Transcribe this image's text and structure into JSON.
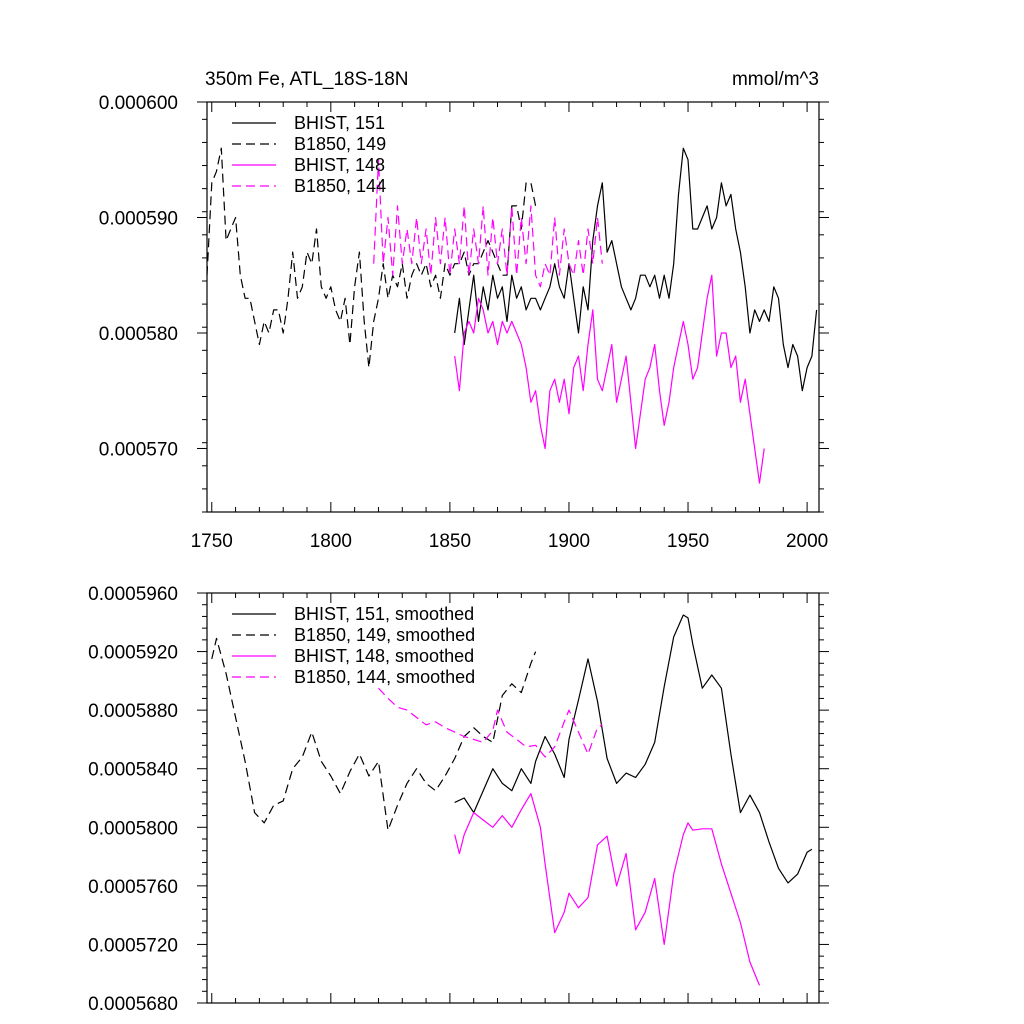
{
  "title_left": "350m Fe, ATL_18S-18N",
  "title_right": "mmol/m^3",
  "colors": {
    "black": "#000000",
    "magenta": "#ff00ff"
  },
  "chart_data": [
    {
      "type": "line",
      "title": "350m Fe, ATL_18S-18N",
      "units": "mmol/m^3",
      "xlim": [
        1748,
        2005
      ],
      "ylim": [
        0.0005645,
        0.0006
      ],
      "x_ticks": [
        1750,
        1800,
        1850,
        1900,
        1950,
        2000
      ],
      "x_tick_labels": [
        "1750",
        "1800",
        "1850",
        "1900",
        "1950",
        "2000"
      ],
      "y_ticks": [
        0.00057,
        0.00058,
        0.00059,
        0.0006
      ],
      "y_tick_labels": [
        "0.000570",
        "0.000580",
        "0.000590",
        "0.000600"
      ],
      "grid": false,
      "legend_position": "top-left",
      "series": [
        {
          "name": "BHIST, 151",
          "color": "#000000",
          "dash": "solid",
          "x": [
            1852,
            1854,
            1856,
            1858,
            1860,
            1862,
            1864,
            1866,
            1868,
            1870,
            1872,
            1874,
            1876,
            1878,
            1880,
            1882,
            1884,
            1886,
            1888,
            1890,
            1892,
            1894,
            1896,
            1898,
            1900,
            1902,
            1904,
            1906,
            1908,
            1910,
            1912,
            1914,
            1916,
            1918,
            1920,
            1922,
            1924,
            1926,
            1928,
            1930,
            1932,
            1934,
            1936,
            1938,
            1940,
            1942,
            1944,
            1946,
            1948,
            1950,
            1952,
            1954,
            1956,
            1958,
            1960,
            1962,
            1964,
            1966,
            1968,
            1970,
            1972,
            1974,
            1976,
            1978,
            1980,
            1982,
            1984,
            1986,
            1988,
            1990,
            1992,
            1994,
            1996,
            1998,
            2000,
            2002,
            2004
          ],
          "y": [
            0.00058,
            0.000583,
            0.000579,
            0.000582,
            0.000585,
            0.000581,
            0.000584,
            0.000582,
            0.000585,
            0.000583,
            0.000584,
            0.000581,
            0.000585,
            0.000583,
            0.000584,
            0.000582,
            0.000583,
            0.000583,
            0.000582,
            0.000583,
            0.000584,
            0.000586,
            0.000584,
            0.000583,
            0.000586,
            0.000583,
            0.00058,
            0.000584,
            0.000582,
            0.000588,
            0.000591,
            0.000593,
            0.000587,
            0.000588,
            0.000586,
            0.000584,
            0.000583,
            0.000582,
            0.000583,
            0.000585,
            0.000585,
            0.000584,
            0.000585,
            0.000583,
            0.000585,
            0.000583,
            0.000586,
            0.000592,
            0.000596,
            0.000595,
            0.000589,
            0.000589,
            0.00059,
            0.000591,
            0.000589,
            0.00059,
            0.000593,
            0.000591,
            0.000592,
            0.000589,
            0.000587,
            0.000584,
            0.00058,
            0.000582,
            0.000581,
            0.000582,
            0.000581,
            0.000584,
            0.000583,
            0.000579,
            0.000577,
            0.000579,
            0.000578,
            0.000575,
            0.000577,
            0.000578,
            0.000582
          ]
        },
        {
          "name": "B1850, 149",
          "color": "#000000",
          "dash": "dashed",
          "x": [
            1748,
            1750,
            1752,
            1754,
            1756,
            1758,
            1760,
            1762,
            1764,
            1766,
            1768,
            1770,
            1772,
            1774,
            1776,
            1778,
            1780,
            1782,
            1784,
            1786,
            1788,
            1790,
            1792,
            1794,
            1796,
            1798,
            1800,
            1802,
            1804,
            1806,
            1808,
            1810,
            1812,
            1814,
            1816,
            1818,
            1820,
            1822,
            1824,
            1826,
            1828,
            1830,
            1832,
            1834,
            1836,
            1838,
            1840,
            1842,
            1844,
            1846,
            1848,
            1850,
            1852,
            1854,
            1856,
            1858,
            1860,
            1862,
            1864,
            1866,
            1868,
            1870,
            1872,
            1874,
            1876,
            1878,
            1880,
            1882,
            1884,
            1886
          ],
          "y": [
            0.000585,
            0.000593,
            0.000594,
            0.000596,
            0.000588,
            0.000589,
            0.00059,
            0.000585,
            0.000583,
            0.000583,
            0.000581,
            0.000579,
            0.000581,
            0.00058,
            0.000582,
            0.000582,
            0.00058,
            0.000583,
            0.000587,
            0.000583,
            0.000584,
            0.000587,
            0.000586,
            0.000589,
            0.000584,
            0.000583,
            0.000584,
            0.000582,
            0.000581,
            0.000583,
            0.000579,
            0.000584,
            0.000587,
            0.000581,
            0.000577,
            0.000581,
            0.000583,
            0.000586,
            0.000583,
            0.000585,
            0.000584,
            0.000586,
            0.000583,
            0.000585,
            0.000586,
            0.000585,
            0.000586,
            0.000584,
            0.000585,
            0.000583,
            0.000586,
            0.000585,
            0.000586,
            0.000586,
            0.000587,
            0.000585,
            0.000586,
            0.000586,
            0.000587,
            0.000588,
            0.000587,
            0.000586,
            0.000585,
            0.000585,
            0.000591,
            0.000591,
            0.000589,
            0.000593,
            0.000593,
            0.000591
          ]
        },
        {
          "name": "BHIST, 148",
          "color": "#ff00ff",
          "dash": "solid",
          "x": [
            1852,
            1854,
            1856,
            1858,
            1860,
            1862,
            1864,
            1866,
            1868,
            1870,
            1872,
            1874,
            1876,
            1878,
            1880,
            1882,
            1884,
            1886,
            1888,
            1890,
            1892,
            1894,
            1896,
            1898,
            1900,
            1902,
            1904,
            1906,
            1908,
            1910,
            1912,
            1914,
            1916,
            1918,
            1920,
            1922,
            1924,
            1926,
            1928,
            1930,
            1932,
            1934,
            1936,
            1938,
            1940,
            1942,
            1944,
            1946,
            1948,
            1950,
            1952,
            1954,
            1956,
            1958,
            1960,
            1962,
            1964,
            1966,
            1968,
            1970,
            1972,
            1974,
            1976,
            1978,
            1980,
            1982
          ],
          "y": [
            0.000578,
            0.000575,
            0.00058,
            0.000581,
            0.00058,
            0.000583,
            0.000582,
            0.00058,
            0.000581,
            0.000579,
            0.000581,
            0.00058,
            0.000581,
            0.00058,
            0.000579,
            0.000577,
            0.000574,
            0.000575,
            0.000572,
            0.00057,
            0.000575,
            0.000576,
            0.000574,
            0.000576,
            0.000573,
            0.000577,
            0.000578,
            0.000575,
            0.000579,
            0.000582,
            0.000576,
            0.000575,
            0.000577,
            0.000579,
            0.000574,
            0.000576,
            0.000578,
            0.000574,
            0.00057,
            0.000573,
            0.000576,
            0.000577,
            0.000579,
            0.000575,
            0.000572,
            0.000574,
            0.000577,
            0.000579,
            0.000581,
            0.000579,
            0.000576,
            0.000577,
            0.00058,
            0.000583,
            0.000585,
            0.000578,
            0.00058,
            0.00058,
            0.000577,
            0.000578,
            0.000574,
            0.000576,
            0.000573,
            0.00057,
            0.000567,
            0.00057
          ]
        },
        {
          "name": "B1850, 144",
          "color": "#ff00ff",
          "dash": "dashed",
          "x": [
            1818,
            1820,
            1822,
            1824,
            1826,
            1828,
            1830,
            1832,
            1834,
            1836,
            1838,
            1840,
            1842,
            1844,
            1846,
            1848,
            1850,
            1852,
            1854,
            1856,
            1858,
            1860,
            1862,
            1864,
            1866,
            1868,
            1870,
            1872,
            1874,
            1876,
            1878,
            1880,
            1882,
            1884,
            1886,
            1888,
            1890,
            1892,
            1894,
            1896,
            1898,
            1900,
            1902,
            1904,
            1906,
            1908,
            1910,
            1912,
            1914
          ],
          "y": [
            0.000586,
            0.000595,
            0.000586,
            0.00059,
            0.000585,
            0.000591,
            0.000586,
            0.000589,
            0.000586,
            0.00059,
            0.000586,
            0.000589,
            0.000585,
            0.00059,
            0.000586,
            0.00059,
            0.000585,
            0.000589,
            0.000586,
            0.000591,
            0.000585,
            0.000589,
            0.000586,
            0.000591,
            0.000585,
            0.00059,
            0.000586,
            0.000589,
            0.000585,
            0.000591,
            0.000585,
            0.00059,
            0.000586,
            0.000591,
            0.000585,
            0.000584,
            0.000586,
            0.000585,
            0.00059,
            0.000585,
            0.000589,
            0.000586,
            0.000585,
            0.000588,
            0.000585,
            0.000589,
            0.000586,
            0.00059,
            0.000586
          ]
        }
      ]
    },
    {
      "type": "line",
      "xlim": [
        1748,
        2005
      ],
      "ylim": [
        0.000568,
        0.000596
      ],
      "x_ticks": [
        1750,
        1800,
        1850,
        1900,
        1950,
        2000
      ],
      "y_ticks": [
        0.000568,
        0.000572,
        0.000576,
        0.00058,
        0.000584,
        0.000588,
        0.000592,
        0.000596
      ],
      "y_tick_labels": [
        "0.0005680",
        "0.0005720",
        "0.0005760",
        "0.0005800",
        "0.0005840",
        "0.0005880",
        "0.0005920",
        "0.0005960"
      ],
      "grid": false,
      "legend_position": "top-left",
      "series": [
        {
          "name": "BHIST, 151, smoothed",
          "color": "#000000",
          "dash": "solid",
          "x": [
            1852,
            1856,
            1860,
            1864,
            1868,
            1872,
            1876,
            1880,
            1884,
            1886,
            1890,
            1894,
            1898,
            1900,
            1904,
            1908,
            1912,
            1916,
            1920,
            1924,
            1928,
            1932,
            1936,
            1940,
            1944,
            1948,
            1950,
            1952,
            1956,
            1960,
            1964,
            1968,
            1972,
            1976,
            1980,
            1984,
            1988,
            1992,
            1996,
            2000,
            2002
          ],
          "y": [
            0.0005817,
            0.000582,
            0.000581,
            0.0005825,
            0.000584,
            0.000583,
            0.0005825,
            0.000584,
            0.000583,
            0.0005845,
            0.0005862,
            0.000585,
            0.0005834,
            0.000586,
            0.0005887,
            0.0005915,
            0.0005886,
            0.0005847,
            0.000583,
            0.0005837,
            0.0005834,
            0.0005843,
            0.0005858,
            0.0005896,
            0.000593,
            0.0005945,
            0.0005943,
            0.0005925,
            0.0005895,
            0.0005904,
            0.0005895,
            0.000585,
            0.000581,
            0.0005822,
            0.000581,
            0.000579,
            0.0005772,
            0.0005762,
            0.0005768,
            0.0005783,
            0.0005785
          ]
        },
        {
          "name": "B1850, 149, smoothed",
          "color": "#000000",
          "dash": "dashed",
          "x": [
            1750,
            1752,
            1756,
            1760,
            1764,
            1768,
            1772,
            1776,
            1780,
            1784,
            1788,
            1792,
            1796,
            1800,
            1804,
            1808,
            1812,
            1816,
            1820,
            1824,
            1828,
            1832,
            1836,
            1840,
            1844,
            1848,
            1852,
            1856,
            1860,
            1864,
            1868,
            1872,
            1876,
            1880,
            1884,
            1886
          ],
          "y": [
            0.0005915,
            0.0005929,
            0.0005905,
            0.0005875,
            0.0005845,
            0.000581,
            0.0005803,
            0.0005815,
            0.0005818,
            0.000584,
            0.0005848,
            0.0005865,
            0.0005845,
            0.0005835,
            0.0005823,
            0.0005838,
            0.000585,
            0.0005835,
            0.0005845,
            0.0005798,
            0.0005815,
            0.000583,
            0.000584,
            0.000583,
            0.0005825,
            0.0005835,
            0.0005847,
            0.0005862,
            0.0005868,
            0.0005862,
            0.0005858,
            0.000589,
            0.0005898,
            0.0005892,
            0.0005912,
            0.000592
          ]
        },
        {
          "name": "BHIST, 148, smoothed",
          "color": "#ff00ff",
          "dash": "solid",
          "x": [
            1852,
            1854,
            1856,
            1860,
            1864,
            1868,
            1872,
            1876,
            1880,
            1884,
            1888,
            1890,
            1894,
            1898,
            1900,
            1904,
            1908,
            1912,
            1916,
            1920,
            1924,
            1928,
            1932,
            1936,
            1940,
            1944,
            1948,
            1950,
            1952,
            1956,
            1960,
            1964,
            1968,
            1972,
            1976,
            1980
          ],
          "y": [
            0.0005795,
            0.0005782,
            0.0005795,
            0.000581,
            0.0005805,
            0.00058,
            0.0005808,
            0.00058,
            0.0005812,
            0.0005823,
            0.00058,
            0.0005775,
            0.0005728,
            0.0005742,
            0.0005755,
            0.0005745,
            0.0005752,
            0.0005788,
            0.0005794,
            0.000576,
            0.0005782,
            0.000573,
            0.0005742,
            0.0005765,
            0.000572,
            0.0005768,
            0.0005795,
            0.0005803,
            0.0005798,
            0.0005799,
            0.0005799,
            0.0005775,
            0.0005755,
            0.0005735,
            0.0005708,
            0.0005692
          ]
        },
        {
          "name": "B1850, 144, smoothed",
          "color": "#ff00ff",
          "dash": "dashed",
          "x": [
            1820,
            1824,
            1828,
            1832,
            1836,
            1840,
            1844,
            1848,
            1852,
            1856,
            1860,
            1864,
            1868,
            1870,
            1874,
            1878,
            1882,
            1886,
            1890,
            1894,
            1898,
            1900,
            1904,
            1908,
            1912,
            1914
          ],
          "y": [
            0.0005895,
            0.0005888,
            0.0005882,
            0.000588,
            0.0005875,
            0.000587,
            0.0005872,
            0.0005868,
            0.0005865,
            0.0005862,
            0.000586,
            0.0005858,
            0.0005866,
            0.000588,
            0.0005865,
            0.000586,
            0.0005855,
            0.0005856,
            0.0005848,
            0.0005855,
            0.0005872,
            0.000588,
            0.0005865,
            0.000585,
            0.0005868,
            0.000587
          ]
        }
      ]
    }
  ]
}
